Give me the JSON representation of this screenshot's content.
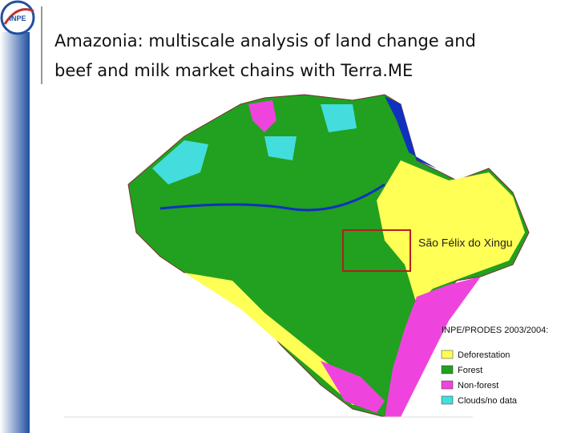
{
  "header": {
    "logo": "INPE",
    "title_lines": [
      "Amazonia: multiscale analysis of land change and",
      "beef and milk market chains with Terra.ME"
    ]
  },
  "map": {
    "annotation": "São Félix do Xingu",
    "legend": {
      "title": "INPE/PRODES 2003/2004:",
      "items": [
        {
          "label": "Deforestation",
          "color": "#ffff55"
        },
        {
          "label": "Forest",
          "color": "#22a020"
        },
        {
          "label": "Non-forest",
          "color": "#ee44dd"
        },
        {
          "label": "Clouds/no data",
          "color": "#44dddd"
        }
      ]
    }
  }
}
